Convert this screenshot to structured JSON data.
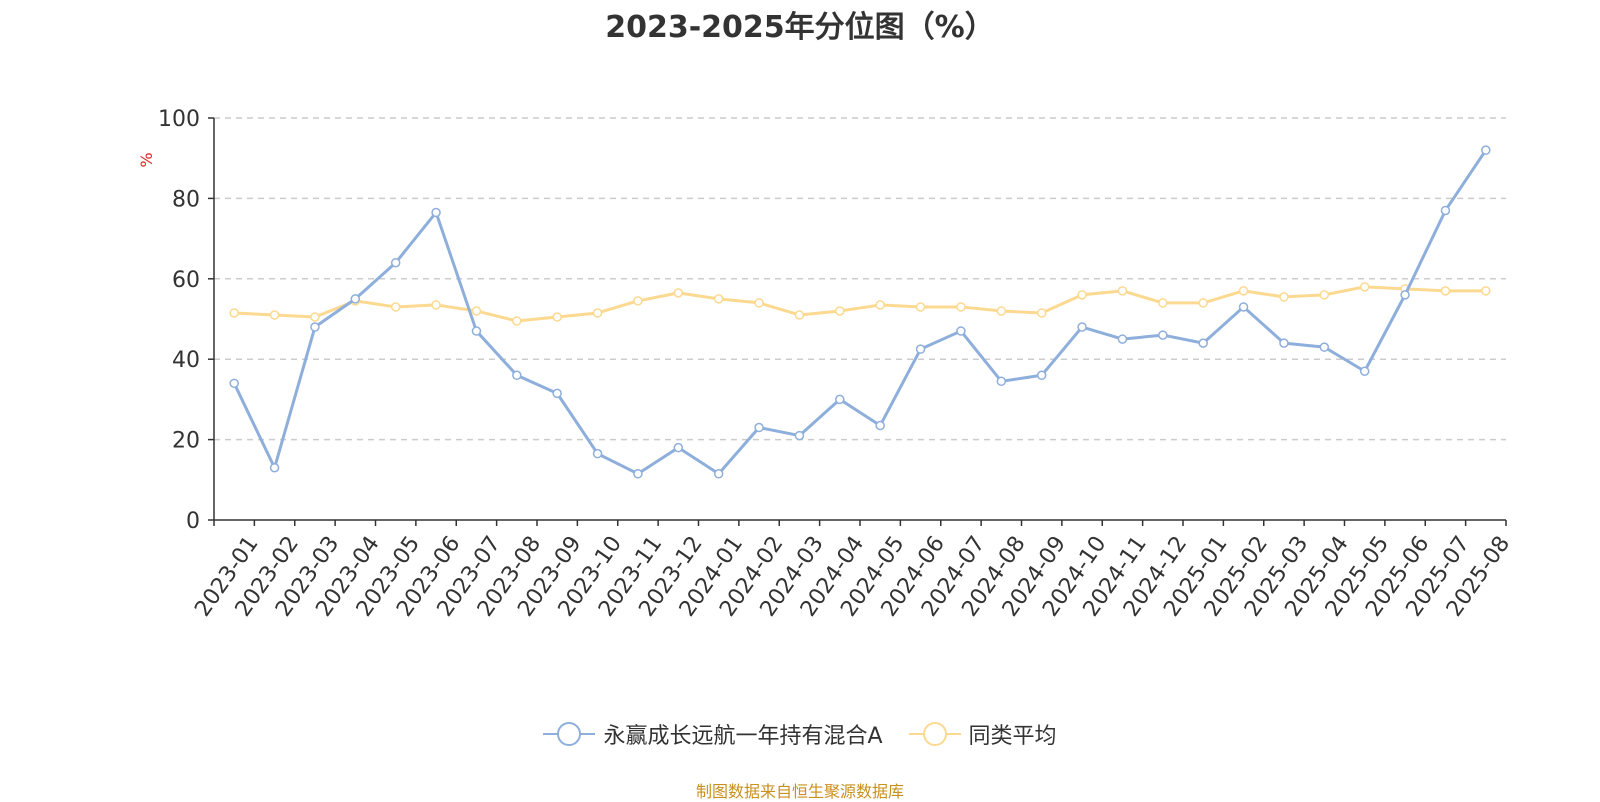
{
  "chart_data": {
    "type": "line",
    "title": "2023-2025年分位图（%）",
    "ylabel": "%",
    "ylim": [
      0,
      100
    ],
    "yticks": [
      0,
      20,
      40,
      60,
      80,
      100
    ],
    "grid": true,
    "legend_position": "bottom-center",
    "categories": [
      "2023-01",
      "2023-02",
      "2023-03",
      "2023-04",
      "2023-05",
      "2023-06",
      "2023-07",
      "2023-08",
      "2023-09",
      "2023-10",
      "2023-11",
      "2023-12",
      "2024-01",
      "2024-02",
      "2024-03",
      "2024-04",
      "2024-05",
      "2024-06",
      "2024-07",
      "2024-08",
      "2024-09",
      "2024-10",
      "2024-11",
      "2024-12",
      "2025-01",
      "2025-02",
      "2025-03",
      "2025-04",
      "2025-05",
      "2025-06",
      "2025-07",
      "2025-08"
    ],
    "series": [
      {
        "name": "永赢成长远航一年持有混合A",
        "color": "#8eaedb",
        "values": [
          34,
          13,
          48,
          55,
          64,
          76.5,
          47,
          36,
          31.5,
          16.5,
          11.5,
          18,
          11.5,
          23,
          21,
          30,
          23.5,
          42.5,
          47,
          34.5,
          36,
          48,
          45,
          46,
          44,
          53,
          44,
          43,
          37,
          56,
          77,
          92
        ]
      },
      {
        "name": "同类平均",
        "color": "#fcd990",
        "values": [
          51.5,
          51,
          50.5,
          54.5,
          53,
          53.5,
          52,
          49.5,
          50.5,
          51.5,
          54.5,
          56.5,
          55,
          54,
          51,
          52,
          53.5,
          53,
          53,
          52,
          51.5,
          56,
          57,
          54,
          54,
          57,
          55.5,
          56,
          58,
          57.5,
          57,
          57
        ]
      }
    ]
  },
  "source_note": "制图数据来自恒生聚源数据库"
}
